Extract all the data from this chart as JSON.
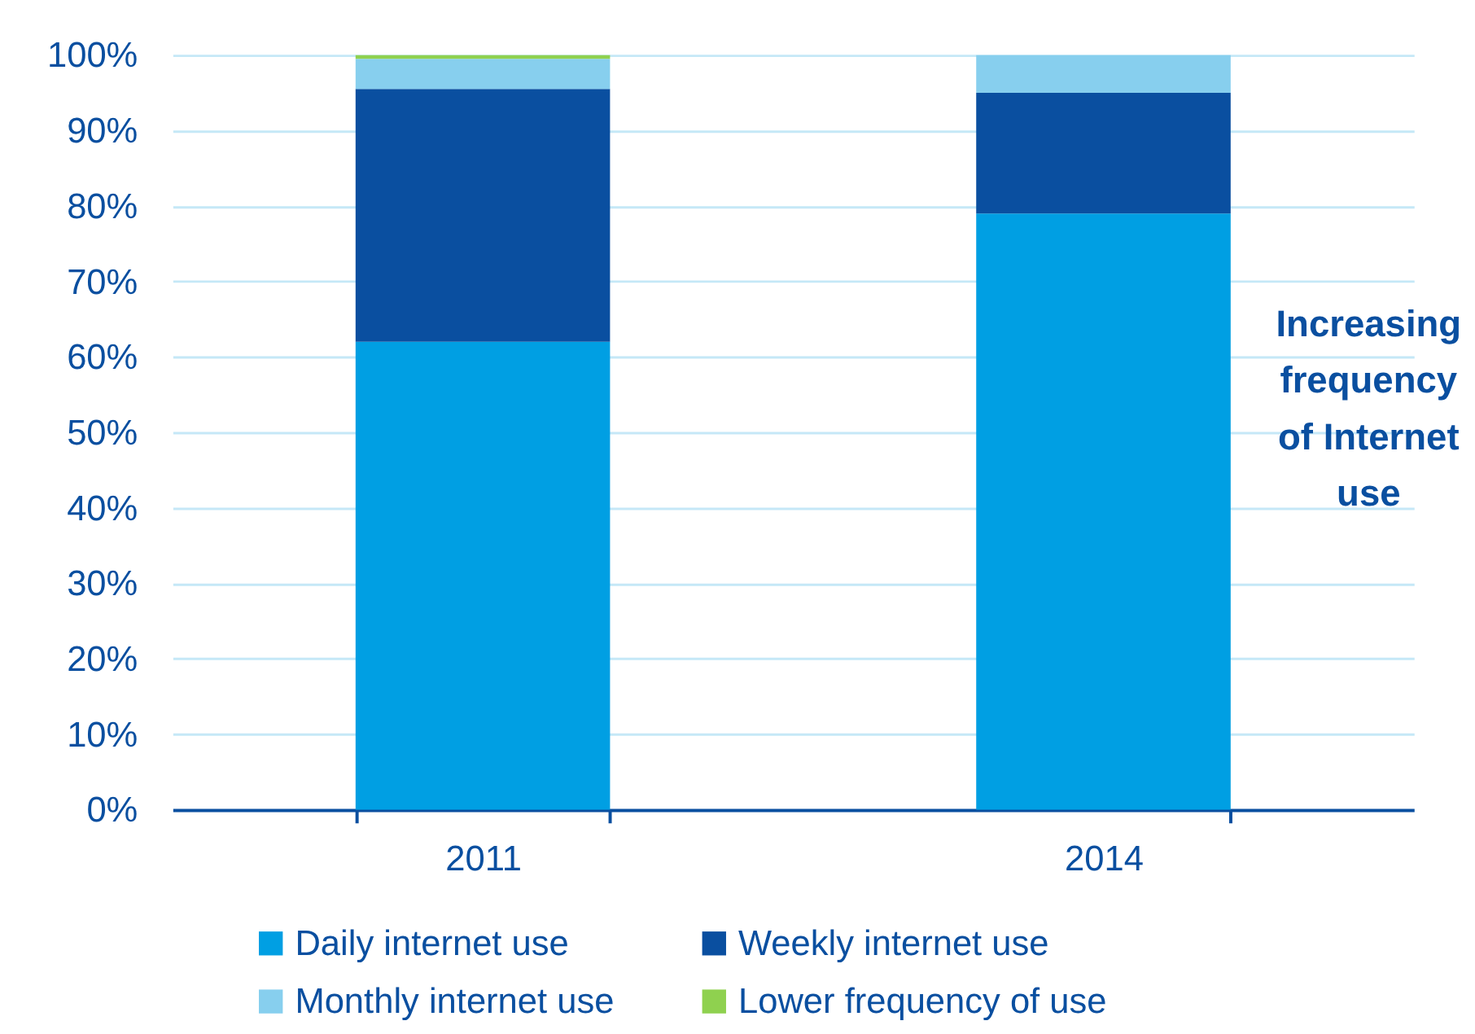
{
  "chart_data": {
    "type": "bar",
    "stacked": true,
    "categories": [
      "2011",
      "2014"
    ],
    "series": [
      {
        "name": "Daily internet use",
        "color": "#009fe3",
        "values": [
          62,
          79
        ]
      },
      {
        "name": "Weekly internet use",
        "color": "#0a4fa0",
        "values": [
          33.5,
          16
        ]
      },
      {
        "name": "Monthly internet use",
        "color": "#87cfee",
        "values": [
          4,
          5
        ]
      },
      {
        "name": "Lower frequency of use",
        "color": "#8fd14f",
        "values": [
          0.5,
          0
        ]
      }
    ],
    "ylim": [
      0,
      100
    ],
    "yticks": [
      {
        "value": 0,
        "label": "0%"
      },
      {
        "value": 10,
        "label": "10%"
      },
      {
        "value": 20,
        "label": "20%"
      },
      {
        "value": 30,
        "label": "30%"
      },
      {
        "value": 40,
        "label": "40%"
      },
      {
        "value": 50,
        "label": "50%"
      },
      {
        "value": 60,
        "label": "60%"
      },
      {
        "value": 70,
        "label": "70%"
      },
      {
        "value": 80,
        "label": "80%"
      },
      {
        "value": 90,
        "label": "90%"
      },
      {
        "value": 100,
        "label": "100%"
      }
    ],
    "grid": "y",
    "legend": "bottom",
    "annotations": [
      "Increasing frequency of Internet use"
    ]
  }
}
